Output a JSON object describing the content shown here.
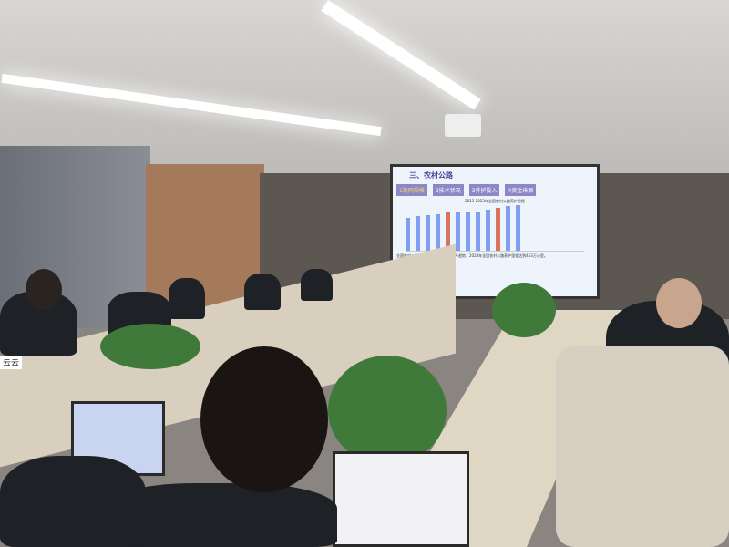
{
  "scene": "meeting-room",
  "slide": {
    "title": "三、农村公路",
    "steps": [
      "1路网规模",
      "2技术状况",
      "3养护投入",
      "4资金来源"
    ],
    "chart_title": "2013-2023年全国农村公路养护里程",
    "bullets": [
      "全国农村公路养护里程规模总体呈上升趋势，2023年全国农村公路养护里程达到453万公里。",
      "十三五末较十二五末增长10%。"
    ]
  },
  "nameplate": "云云",
  "colors": {
    "slide_accent": "#8d87c8",
    "bar": "#7f9ef2",
    "bar_highlight": "#d8745e"
  }
}
